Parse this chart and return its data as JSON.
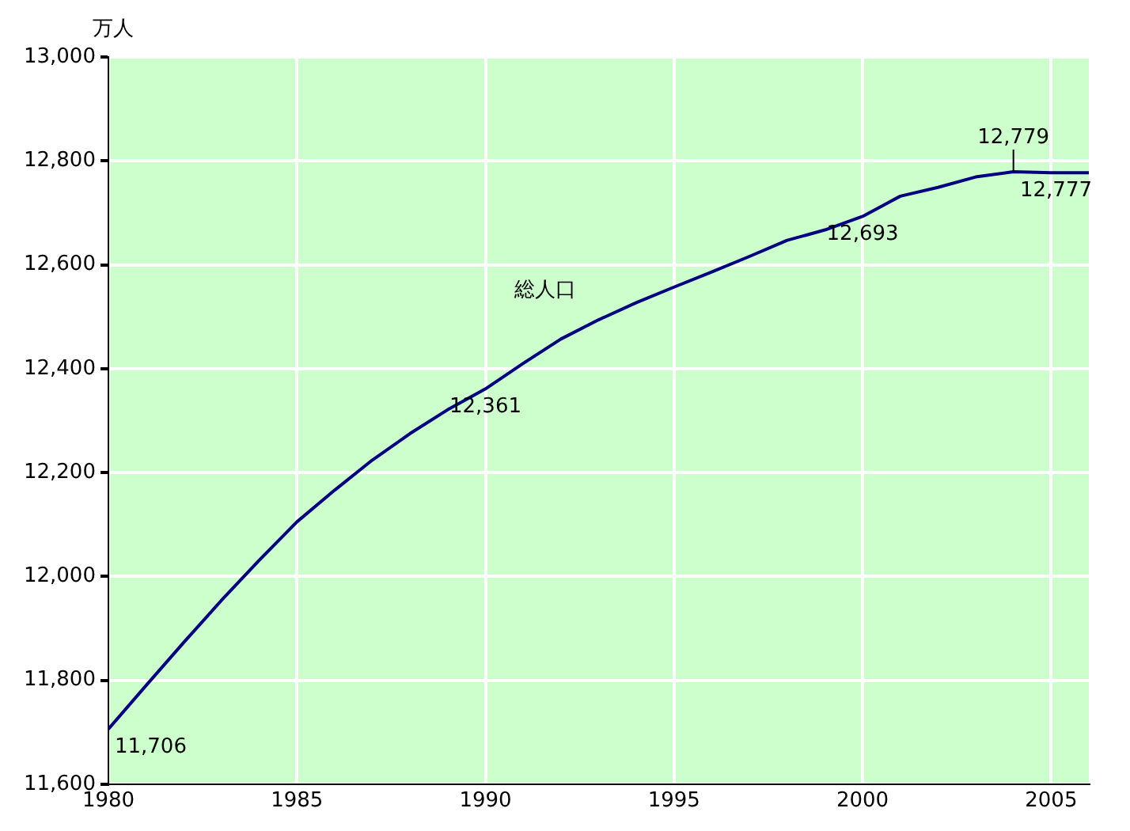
{
  "chart_data": {
    "type": "line",
    "ylabel": "万人",
    "x": [
      1980,
      1981,
      1982,
      1983,
      1984,
      1985,
      1986,
      1987,
      1988,
      1989,
      1990,
      1991,
      1992,
      1993,
      1994,
      1995,
      1996,
      1997,
      1998,
      1999,
      2000,
      2001,
      2002,
      2003,
      2004,
      2005,
      2006
    ],
    "series": [
      {
        "name": "総人口",
        "color": "#000080",
        "values": [
          11706,
          11790,
          11873,
          11954,
          12031,
          12105,
          12166,
          12224,
          12275,
          12321,
          12361,
          12410,
          12457,
          12494,
          12527,
          12557,
          12586,
          12616,
          12647,
          12667,
          12693,
          12732,
          12749,
          12769,
          12779,
          12777,
          12777
        ],
        "value_labels": [
          "11,706",
          null,
          null,
          null,
          null,
          null,
          null,
          null,
          null,
          null,
          "12,361",
          null,
          null,
          null,
          null,
          null,
          null,
          null,
          null,
          null,
          "12,693",
          null,
          null,
          null,
          "12,779",
          null,
          "12,777"
        ]
      }
    ],
    "xlim": [
      1980,
      2006
    ],
    "xticks": [
      1980,
      1985,
      1990,
      1995,
      2000,
      2005
    ],
    "ylim": [
      11600,
      13000
    ],
    "yticks": [
      {
        "value": 11600,
        "label": "11,600"
      },
      {
        "value": 11800,
        "label": "11,800"
      },
      {
        "value": 12000,
        "label": "12,000"
      },
      {
        "value": 12200,
        "label": "12,200"
      },
      {
        "value": 12400,
        "label": "12,400"
      },
      {
        "value": 12600,
        "label": "12,600"
      },
      {
        "value": 12800,
        "label": "12,800"
      },
      {
        "value": 13000,
        "label": "13,000"
      }
    ],
    "grid": true,
    "legend": false,
    "marker": "none",
    "line_style": "solid"
  }
}
